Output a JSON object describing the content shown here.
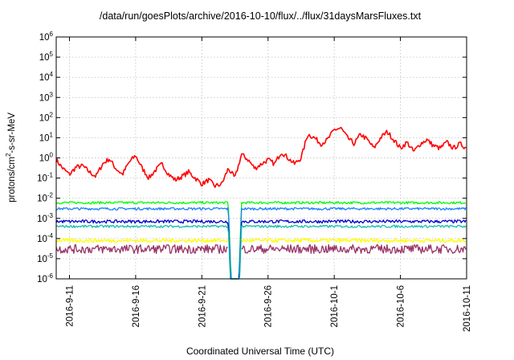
{
  "chart_data": {
    "type": "line",
    "title": "/data/run/goesPlots/archive/2016-10-10/flux/../flux/31daysMarsFluxes.txt",
    "xlabel": "Coordinated Universal Time (UTC)",
    "ylabel": {
      "pre": "protons/cm",
      "sup": "2",
      "post": "-s-sr-MeV"
    },
    "yscale": "log",
    "ylim": [
      1e-06,
      1000000.0
    ],
    "xlim": [
      "2016-09-10",
      "2016-10-11"
    ],
    "grid": true,
    "x_ticks": [
      {
        "label": "2016-9-11",
        "day": 1
      },
      {
        "label": "2016-9-16",
        "day": 6
      },
      {
        "label": "2016-9-21",
        "day": 11
      },
      {
        "label": "2016-9-26",
        "day": 16
      },
      {
        "label": "2016-10-1",
        "day": 21
      },
      {
        "label": "2016-10-6",
        "day": 26
      },
      {
        "label": "2016-10-11",
        "day": 31
      }
    ],
    "y_ticks": [
      {
        "base": "10",
        "exp": "-6",
        "value": 1e-06
      },
      {
        "base": "10",
        "exp": "-5",
        "value": 1e-05
      },
      {
        "base": "10",
        "exp": "-4",
        "value": 0.0001
      },
      {
        "base": "10",
        "exp": "-3",
        "value": 0.001
      },
      {
        "base": "10",
        "exp": "-2",
        "value": 0.01
      },
      {
        "base": "10",
        "exp": "-1",
        "value": 0.1
      },
      {
        "base": "10",
        "exp": "0",
        "value": 1
      },
      {
        "base": "10",
        "exp": "1",
        "value": 10
      },
      {
        "base": "10",
        "exp": "2",
        "value": 100
      },
      {
        "base": "10",
        "exp": "3",
        "value": 1000
      },
      {
        "base": "10",
        "exp": "4",
        "value": 10000
      },
      {
        "base": "10",
        "exp": "5",
        "value": 100000
      },
      {
        "base": "10",
        "exp": "6",
        "value": 1000000
      }
    ],
    "gap": {
      "start_day": 13.0,
      "end_day": 14.0
    },
    "series": [
      {
        "color": "#ff0000",
        "points": [
          [
            0,
            0.8
          ],
          [
            0.5,
            0.3
          ],
          [
            1,
            0.15
          ],
          [
            1.5,
            0.35
          ],
          [
            2,
            0.4
          ],
          [
            2.5,
            0.2
          ],
          [
            3,
            0.12
          ],
          [
            3.5,
            0.5
          ],
          [
            4,
            0.9
          ],
          [
            4.5,
            0.3
          ],
          [
            5,
            0.15
          ],
          [
            5.5,
            0.6
          ],
          [
            6,
            1.3
          ],
          [
            6.5,
            0.3
          ],
          [
            7,
            0.1
          ],
          [
            7.5,
            0.25
          ],
          [
            8,
            0.5
          ],
          [
            8.5,
            0.15
          ],
          [
            9,
            0.08
          ],
          [
            9.5,
            0.12
          ],
          [
            10,
            0.2
          ],
          [
            10.5,
            0.1
          ],
          [
            11,
            0.05
          ],
          [
            11.5,
            0.08
          ],
          [
            12,
            0.04
          ],
          [
            12.5,
            0.05
          ],
          [
            13,
            0.3
          ],
          [
            13.5,
            0.1
          ],
          [
            14,
            1.5
          ],
          [
            14.5,
            0.8
          ],
          [
            15,
            0.3
          ],
          [
            15.5,
            0.5
          ],
          [
            16,
            0.8
          ],
          [
            16.5,
            0.5
          ],
          [
            17,
            2
          ],
          [
            17.5,
            1
          ],
          [
            18,
            0.5
          ],
          [
            18.5,
            1
          ],
          [
            19,
            15
          ],
          [
            19.5,
            10
          ],
          [
            20,
            5
          ],
          [
            20.5,
            8
          ],
          [
            21,
            25
          ],
          [
            21.5,
            30
          ],
          [
            22,
            10
          ],
          [
            22.5,
            5
          ],
          [
            23,
            15
          ],
          [
            23.5,
            8
          ],
          [
            24,
            3
          ],
          [
            24.5,
            10
          ],
          [
            25,
            20
          ],
          [
            25.5,
            8
          ],
          [
            26,
            3
          ],
          [
            26.5,
            6
          ],
          [
            27,
            2
          ],
          [
            27.5,
            5
          ],
          [
            28,
            8
          ],
          [
            28.5,
            4
          ],
          [
            29,
            3
          ],
          [
            29.5,
            6
          ],
          [
            30,
            3
          ],
          [
            30.5,
            5
          ],
          [
            31,
            3
          ]
        ]
      },
      {
        "color": "#00ff00",
        "points": [
          [
            0,
            0.006
          ],
          [
            13,
            0.006
          ],
          [
            13.5,
            1e-08
          ],
          [
            13.5,
            1e-08
          ],
          [
            14,
            0.006
          ],
          [
            31,
            0.006
          ]
        ]
      },
      {
        "color": "#1a7fff",
        "points": [
          [
            0,
            0.003
          ],
          [
            13,
            0.003
          ],
          [
            13.5,
            1e-08
          ],
          [
            13.5,
            1e-08
          ],
          [
            14,
            0.003
          ],
          [
            31,
            0.003
          ]
        ]
      },
      {
        "color": "#0000cc",
        "points": [
          [
            0,
            0.0007
          ],
          [
            13,
            0.0007
          ],
          [
            13.5,
            1e-08
          ],
          [
            13.5,
            1e-08
          ],
          [
            14,
            0.0007
          ],
          [
            31,
            0.0007
          ]
        ]
      },
      {
        "color": "#18c0a8",
        "points": [
          [
            0,
            0.0004
          ],
          [
            13,
            0.0004
          ],
          [
            13.5,
            1e-08
          ],
          [
            13.5,
            1e-08
          ],
          [
            14,
            0.0004
          ],
          [
            31,
            0.0004
          ]
        ]
      },
      {
        "color": "#ffff00",
        "points": [
          [
            0,
            8e-05
          ],
          [
            13,
            8e-05
          ],
          [
            14,
            8e-05
          ],
          [
            31,
            8e-05
          ]
        ]
      },
      {
        "color": "#993366",
        "points": [
          [
            0,
            3e-05
          ],
          [
            13,
            3e-05
          ],
          [
            14,
            3e-05
          ],
          [
            31,
            3e-05
          ]
        ]
      }
    ]
  }
}
